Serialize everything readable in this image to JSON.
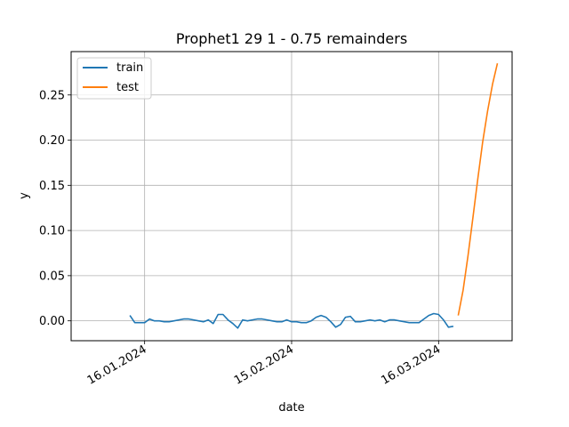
{
  "chart_data": {
    "type": "line",
    "title": "Prophet1 29 1 - 0.75 remainders",
    "xlabel": "date",
    "ylabel": "y",
    "x_ticks": [
      {
        "date": "2024-01-16",
        "label": "16.01.2024"
      },
      {
        "date": "2024-02-15",
        "label": "15.02.2024"
      },
      {
        "date": "2024-03-16",
        "label": "16.03.2024"
      }
    ],
    "y_ticks": [
      {
        "value": 0.0,
        "label": "0.00"
      },
      {
        "value": 0.05,
        "label": "0.05"
      },
      {
        "value": 0.1,
        "label": "0.10"
      },
      {
        "value": 0.15,
        "label": "0.15"
      },
      {
        "value": 0.2,
        "label": "0.20"
      },
      {
        "value": 0.25,
        "label": "0.25"
      }
    ],
    "xlim": [
      "2024-01-01",
      "2024-03-31"
    ],
    "ylim": [
      -0.022,
      0.298
    ],
    "grid": true,
    "legend_position": "top-left",
    "series": [
      {
        "name": "train",
        "color": "#1f77b4",
        "points": [
          [
            "2024-01-13",
            0.006
          ],
          [
            "2024-01-14",
            -0.002
          ],
          [
            "2024-01-15",
            -0.002
          ],
          [
            "2024-01-16",
            -0.002
          ],
          [
            "2024-01-17",
            0.002
          ],
          [
            "2024-01-18",
            0.0
          ],
          [
            "2024-01-19",
            0.0
          ],
          [
            "2024-01-20",
            -0.001
          ],
          [
            "2024-01-21",
            -0.001
          ],
          [
            "2024-01-22",
            0.0
          ],
          [
            "2024-01-23",
            0.001
          ],
          [
            "2024-01-24",
            0.002
          ],
          [
            "2024-01-25",
            0.002
          ],
          [
            "2024-01-26",
            0.001
          ],
          [
            "2024-01-27",
            0.0
          ],
          [
            "2024-01-28",
            -0.001
          ],
          [
            "2024-01-29",
            0.001
          ],
          [
            "2024-01-30",
            -0.003
          ],
          [
            "2024-01-31",
            0.007
          ],
          [
            "2024-02-01",
            0.007
          ],
          [
            "2024-02-02",
            0.001
          ],
          [
            "2024-02-03",
            -0.003
          ],
          [
            "2024-02-04",
            -0.008
          ],
          [
            "2024-02-05",
            0.001
          ],
          [
            "2024-02-06",
            0.0
          ],
          [
            "2024-02-07",
            0.001
          ],
          [
            "2024-02-08",
            0.002
          ],
          [
            "2024-02-09",
            0.002
          ],
          [
            "2024-02-10",
            0.001
          ],
          [
            "2024-02-11",
            0.0
          ],
          [
            "2024-02-12",
            -0.001
          ],
          [
            "2024-02-13",
            -0.001
          ],
          [
            "2024-02-14",
            0.001
          ],
          [
            "2024-02-15",
            -0.001
          ],
          [
            "2024-02-16",
            -0.001
          ],
          [
            "2024-02-17",
            -0.002
          ],
          [
            "2024-02-18",
            -0.002
          ],
          [
            "2024-02-19",
            0.0
          ],
          [
            "2024-02-20",
            0.004
          ],
          [
            "2024-02-21",
            0.006
          ],
          [
            "2024-02-22",
            0.004
          ],
          [
            "2024-02-23",
            -0.001
          ],
          [
            "2024-02-24",
            -0.007
          ],
          [
            "2024-02-25",
            -0.004
          ],
          [
            "2024-02-26",
            0.004
          ],
          [
            "2024-02-27",
            0.005
          ],
          [
            "2024-02-28",
            -0.001
          ],
          [
            "2024-02-29",
            -0.001
          ],
          [
            "2024-03-01",
            0.0
          ],
          [
            "2024-03-02",
            0.001
          ],
          [
            "2024-03-03",
            0.0
          ],
          [
            "2024-03-04",
            0.001
          ],
          [
            "2024-03-05",
            -0.001
          ],
          [
            "2024-03-06",
            0.001
          ],
          [
            "2024-03-07",
            0.001
          ],
          [
            "2024-03-08",
            0.0
          ],
          [
            "2024-03-09",
            -0.001
          ],
          [
            "2024-03-10",
            -0.002
          ],
          [
            "2024-03-11",
            -0.002
          ],
          [
            "2024-03-12",
            -0.002
          ],
          [
            "2024-03-13",
            0.002
          ],
          [
            "2024-03-14",
            0.006
          ],
          [
            "2024-03-15",
            0.008
          ],
          [
            "2024-03-16",
            0.007
          ],
          [
            "2024-03-17",
            0.001
          ],
          [
            "2024-03-18",
            -0.007
          ],
          [
            "2024-03-19",
            -0.006
          ]
        ]
      },
      {
        "name": "test",
        "color": "#ff7f0e",
        "points": [
          [
            "2024-03-20",
            0.006
          ],
          [
            "2024-03-21",
            0.034
          ],
          [
            "2024-03-22",
            0.072
          ],
          [
            "2024-03-23",
            0.114
          ],
          [
            "2024-03-24",
            0.157
          ],
          [
            "2024-03-25",
            0.198
          ],
          [
            "2024-03-26",
            0.232
          ],
          [
            "2024-03-27",
            0.262
          ],
          [
            "2024-03-28",
            0.285
          ]
        ]
      }
    ]
  }
}
